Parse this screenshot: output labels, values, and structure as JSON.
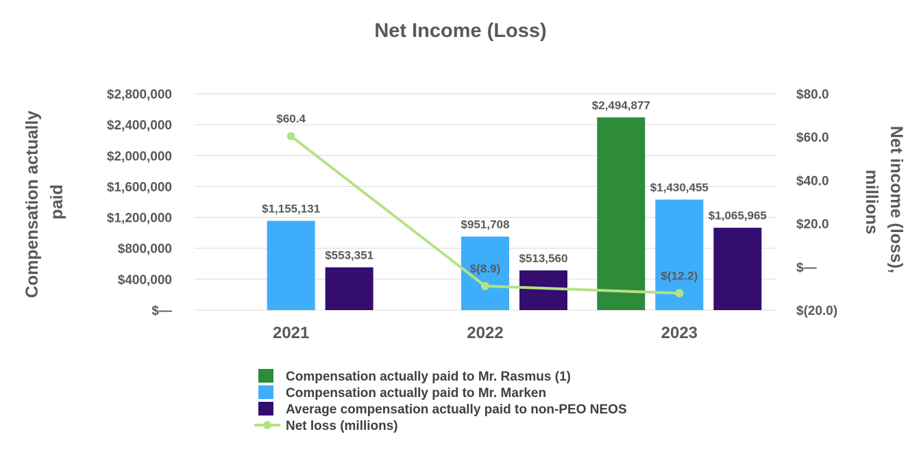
{
  "chart_data": {
    "type": "bar",
    "title": "Net Income (Loss)",
    "categories": [
      "2021",
      "2022",
      "2023"
    ],
    "y_left": {
      "label_lines": [
        "Compensation actually",
        "paid"
      ],
      "range": [
        0,
        2800000
      ],
      "ticks": [
        {
          "value": 0,
          "label": "$—"
        },
        {
          "value": 400000,
          "label": "$400,000"
        },
        {
          "value": 800000,
          "label": "$800,000"
        },
        {
          "value": 1200000,
          "label": "$1,200,000"
        },
        {
          "value": 1600000,
          "label": "$1,600,000"
        },
        {
          "value": 2000000,
          "label": "$2,000,000"
        },
        {
          "value": 2400000,
          "label": "$2,400,000"
        },
        {
          "value": 2800000,
          "label": "$2,800,000"
        }
      ]
    },
    "y_right": {
      "label_lines": [
        "Net income (loss),",
        "millions"
      ],
      "range": [
        -20,
        80
      ],
      "ticks": [
        {
          "value": -20,
          "label": "$(20.0)"
        },
        {
          "value": 0,
          "label": "$—"
        },
        {
          "value": 20,
          "label": "$20.0"
        },
        {
          "value": 40,
          "label": "$40.0"
        },
        {
          "value": 60,
          "label": "$60.0"
        },
        {
          "value": 80,
          "label": "$80.0"
        }
      ]
    },
    "grid": true,
    "legend_position": "bottom",
    "series": [
      {
        "name": "Compensation actually paid to Mr. Rasmus (1)",
        "type": "bar",
        "color": "#2e8b3a",
        "values": [
          null,
          null,
          2494877
        ],
        "labels": [
          "",
          "",
          "$2,494,877"
        ]
      },
      {
        "name": "Compensation actually paid to Mr. Marken",
        "type": "bar",
        "color": "#3eaefb",
        "values": [
          1155131,
          951708,
          1430455
        ],
        "labels": [
          "$1,155,131",
          "$951,708",
          "$1,430,455"
        ]
      },
      {
        "name": "Average compensation actually paid to non-PEO NEOS",
        "type": "bar",
        "color": "#330e6f",
        "values": [
          553351,
          513560,
          1065965
        ],
        "labels": [
          "$553,351",
          "$513,560",
          "$1,065,965"
        ]
      },
      {
        "name": "Net loss (millions)",
        "type": "line",
        "axis": "right",
        "color": "#b5e285",
        "values": [
          60.4,
          -8.9,
          -12.2
        ],
        "labels": [
          "$60.4",
          "$(8.9)",
          "$(12.2)"
        ]
      }
    ]
  }
}
